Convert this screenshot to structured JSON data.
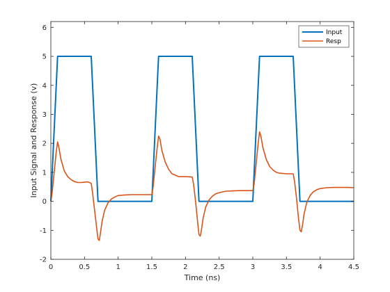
{
  "chart_data": {
    "type": "line",
    "xlabel": "Time (ns)",
    "ylabel": "Input Signal and Response (v)",
    "xlim": [
      0,
      4.5
    ],
    "ylim": [
      -2,
      6.2
    ],
    "xticks": [
      0,
      0.5,
      1,
      1.5,
      2,
      2.5,
      3,
      3.5,
      4,
      4.5
    ],
    "xtick_labels": [
      "0",
      "0.5",
      "1",
      "1.5",
      "2",
      "2.5",
      "3",
      "3.5",
      "4",
      "4.5"
    ],
    "yticks": [
      -2,
      -1,
      0,
      1,
      2,
      3,
      4,
      5,
      6
    ],
    "ytick_labels": [
      "-2",
      "-1",
      "0",
      "1",
      "2",
      "3",
      "4",
      "5",
      "6"
    ],
    "grid": false,
    "legend": {
      "position": "top-right"
    },
    "series": [
      {
        "name": "Input",
        "color": "#0072bd",
        "x": [
          0,
          0.1,
          0.6,
          0.7,
          1.5,
          1.6,
          2.1,
          2.2,
          3.0,
          3.1,
          3.6,
          3.7,
          4.5
        ],
        "y": [
          0,
          5,
          5,
          0,
          0,
          5,
          5,
          0,
          0,
          5,
          5,
          0,
          0
        ]
      },
      {
        "name": "Resp",
        "color": "#d95319",
        "x": [
          0,
          0.02,
          0.05,
          0.08,
          0.1,
          0.12,
          0.15,
          0.2,
          0.25,
          0.3,
          0.35,
          0.4,
          0.45,
          0.5,
          0.55,
          0.6,
          0.62,
          0.65,
          0.68,
          0.7,
          0.72,
          0.74,
          0.76,
          0.8,
          0.85,
          0.9,
          0.95,
          1.0,
          1.1,
          1.2,
          1.3,
          1.4,
          1.5,
          1.52,
          1.55,
          1.58,
          1.6,
          1.62,
          1.65,
          1.7,
          1.75,
          1.8,
          1.85,
          1.9,
          2.0,
          2.1,
          2.12,
          2.15,
          2.18,
          2.2,
          2.22,
          2.24,
          2.26,
          2.3,
          2.35,
          2.4,
          2.45,
          2.5,
          2.6,
          2.7,
          2.8,
          2.9,
          3.0,
          3.02,
          3.05,
          3.08,
          3.1,
          3.12,
          3.15,
          3.2,
          3.25,
          3.3,
          3.35,
          3.4,
          3.5,
          3.6,
          3.62,
          3.65,
          3.68,
          3.7,
          3.72,
          3.74,
          3.76,
          3.8,
          3.85,
          3.9,
          3.95,
          4.0,
          4.1,
          4.2,
          4.3,
          4.4,
          4.5
        ],
        "y": [
          0,
          0.3,
          1.0,
          1.7,
          2.05,
          1.85,
          1.45,
          1.05,
          0.85,
          0.75,
          0.68,
          0.65,
          0.65,
          0.66,
          0.67,
          0.62,
          0.3,
          -0.3,
          -0.9,
          -1.3,
          -1.35,
          -1.05,
          -0.7,
          -0.3,
          -0.05,
          0.08,
          0.15,
          0.2,
          0.22,
          0.23,
          0.23,
          0.23,
          0.23,
          0.5,
          1.2,
          1.85,
          2.25,
          2.15,
          1.75,
          1.35,
          1.1,
          0.95,
          0.9,
          0.85,
          0.85,
          0.84,
          0.6,
          0.0,
          -0.7,
          -1.15,
          -1.2,
          -0.95,
          -0.6,
          -0.2,
          0.05,
          0.18,
          0.26,
          0.3,
          0.35,
          0.36,
          0.37,
          0.37,
          0.37,
          0.6,
          1.3,
          2.0,
          2.4,
          2.25,
          1.85,
          1.45,
          1.2,
          1.08,
          1.0,
          0.97,
          0.95,
          0.95,
          0.7,
          0.1,
          -0.6,
          -1.0,
          -1.05,
          -0.8,
          -0.45,
          -0.05,
          0.2,
          0.33,
          0.4,
          0.44,
          0.47,
          0.48,
          0.48,
          0.48,
          0.47
        ]
      }
    ]
  }
}
